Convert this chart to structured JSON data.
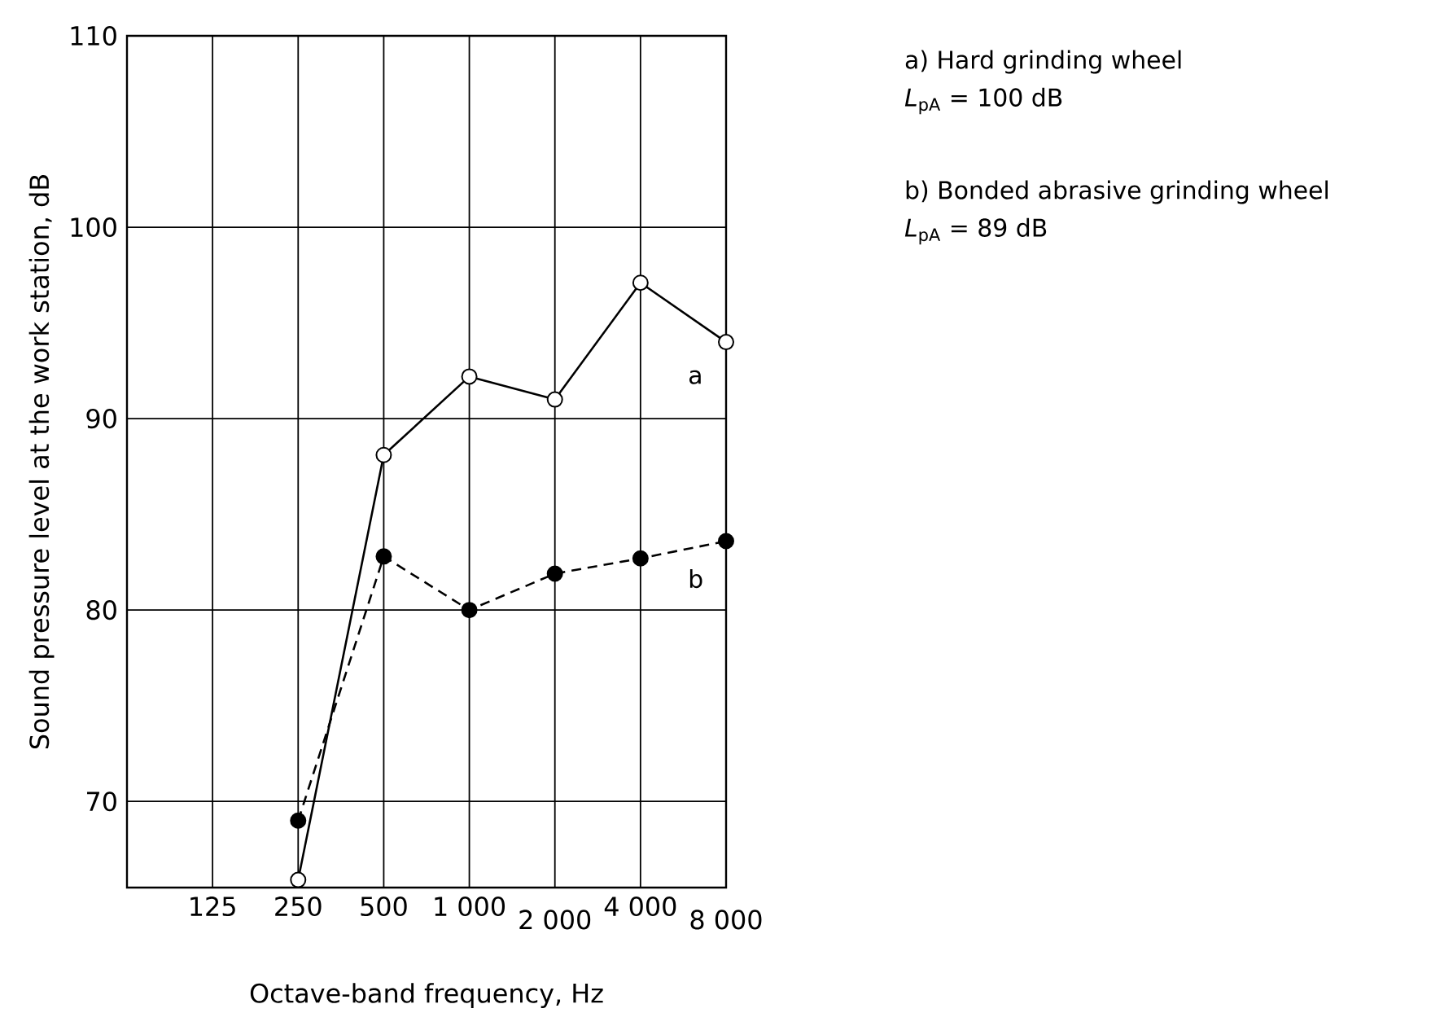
{
  "chart_data": {
    "type": "line",
    "xlabel": "Octave-band frequency, Hz",
    "ylabel": "Sound pressure level at the work station, dB",
    "categories": [
      "125",
      "250",
      "500",
      "1 000",
      "2 000",
      "4 000",
      "8 000"
    ],
    "series": [
      {
        "name": "a",
        "color": "#000000",
        "line_style": "solid",
        "values": [
          null,
          65.9,
          88.1,
          92.2,
          91.0,
          97.1,
          94.0
        ]
      },
      {
        "name": "b",
        "color": "#000000",
        "line_style": "dashed",
        "values": [
          null,
          69.0,
          82.8,
          80.0,
          81.9,
          82.7,
          83.6
        ]
      }
    ],
    "ylim": [
      65.5,
      110
    ],
    "yticks": [
      70,
      80,
      90,
      100,
      110
    ],
    "grid": true,
    "marker": "circle",
    "annotations": [
      "a)  Hard grinding wheel",
      "*L*$_{pA}$ = 100 dB",
      "b)  Bonded abrasive grinding wheel",
      "*L*$_{pA}$ = 89 dB"
    ]
  }
}
